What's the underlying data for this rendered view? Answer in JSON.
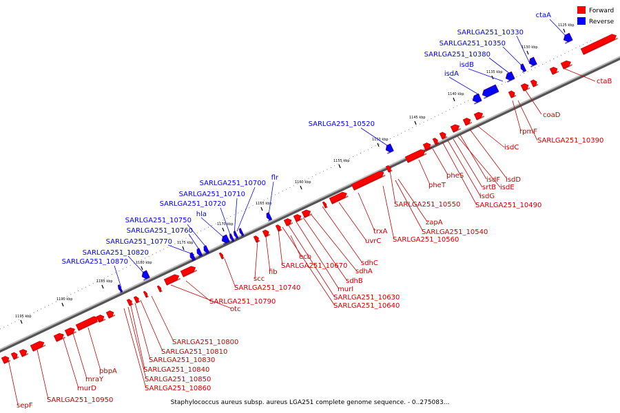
{
  "caption": "Staphylococcus aureus subsp. aureus LGA251 complete genome sequence. - 0..275083...",
  "legend": [
    {
      "label": "Forward",
      "color": "#ff0000"
    },
    {
      "label": "Reverse",
      "color": "#0000ff"
    }
  ],
  "colors": {
    "forward": "#ff0000",
    "reverse": "#0000ff",
    "backbone": "#808080"
  },
  "ticks": [
    {
      "label": "1125 kbp",
      "kbp": 1125
    },
    {
      "label": "1130 kbp",
      "kbp": 1130
    },
    {
      "label": "1135 kbp",
      "kbp": 1135
    },
    {
      "label": "1140 kbp",
      "kbp": 1140
    },
    {
      "label": "1145 kbp",
      "kbp": 1145
    },
    {
      "label": "1150 kbp",
      "kbp": 1150
    },
    {
      "label": "1155 kbp",
      "kbp": 1155
    },
    {
      "label": "1160 kbp",
      "kbp": 1160
    },
    {
      "label": "1165 kbp",
      "kbp": 1165
    },
    {
      "label": "1170 kbp",
      "kbp": 1170
    },
    {
      "label": "1175 kbp",
      "kbp": 1175
    },
    {
      "label": "1180 kbp",
      "kbp": 1180
    },
    {
      "label": "1185 kbp",
      "kbp": 1185
    },
    {
      "label": "1190 kbp",
      "kbp": 1190
    },
    {
      "label": "1195 kbp",
      "kbp": 1195
    }
  ],
  "reverse_labels": [
    "ctaA",
    "SARLGA251_10330",
    "SARLGA251_10350",
    "SARLGA251_10380",
    "isdB",
    "isdA",
    "SARLGA251_10520",
    "flr",
    "SARLGA251_10700",
    "SARLGA251_10710",
    "SARLGA251_10720",
    "hla",
    "SARLGA251_10750",
    "SARLGA251_10760",
    "SARLGA251_10770",
    "SARLGA251_10820",
    "SARLGA251_10870"
  ],
  "forward_labels": [
    "ctaB",
    "coaD",
    "rpmF",
    "SARLGA251_10390",
    "isdC",
    "isdD",
    "isdF",
    "isdE",
    "srtB",
    "isdG",
    "SARLGA251_10490",
    "pheS",
    "pheT",
    "SARLGA251_10550",
    "zapA",
    "SARLGA251_10540",
    "SARLGA251_10560",
    "trxA",
    "uvrC",
    "sdhC",
    "sdhA",
    "sdhB",
    "murI",
    "SARLGA251_10630",
    "SARLGA251_10640",
    "SARLGA251_10670",
    "ecb",
    "fib",
    "scc",
    "SARLGA251_10740",
    "SARLGA251_10790",
    "otc",
    "SARLGA251_10800",
    "SARLGA251_10810",
    "SARLGA251_10830",
    "SARLGA251_10840",
    "SARLGA251_10850",
    "SARLGA251_10860",
    "pbpA",
    "mraY",
    "murD",
    "SARLGA251_10950",
    "sepF"
  ]
}
